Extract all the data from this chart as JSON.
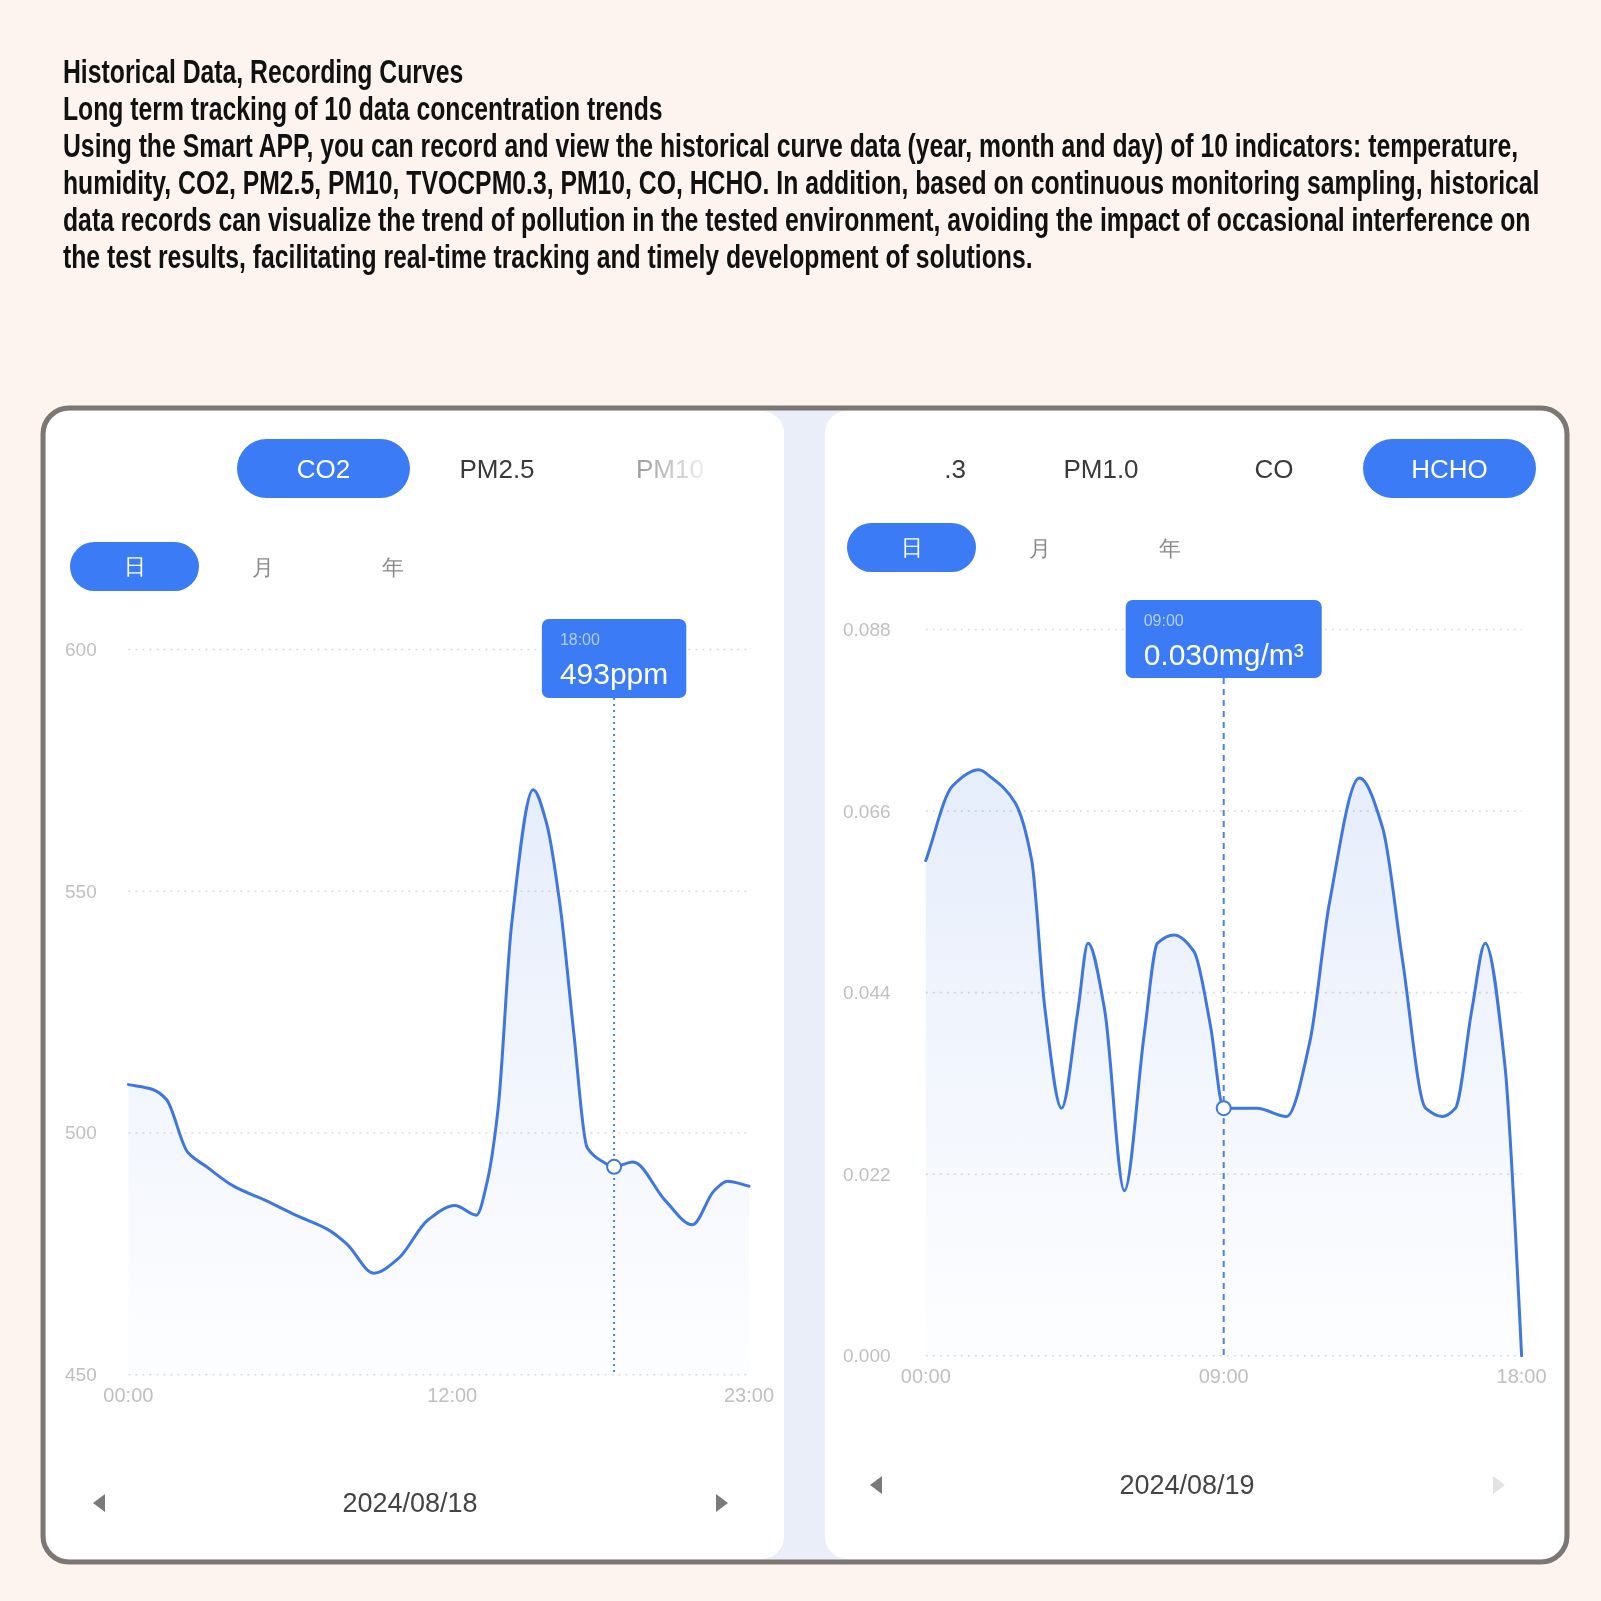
{
  "chart_data": [
    {
      "type": "area",
      "title": "Historical Data, Recording Curves",
      "subtitle": "Long term tracking of 10 data concentration trends",
      "annotations": [
        "Using the Smart APP, you can record and view the historical curve data (year, month and day) of 10 indicators: temperature, humidity, CO2, PM2.5, PM10, TVOCPM0.3, PM10, CO, HCHO. In addition, based on continuous monitoring sampling, historical data records can visualize the trend of pollution in the tested environment, avoiding the impact of occasional interference on the test results, facilitating real-time tracking and timely development of solutions.",
        "CO2",
        "PM2.5",
        "PM10",
        "日",
        "月",
        "年",
        "18:00",
        "493ppm",
        "2024/08/18"
      ],
      "x": [
        0,
        0.9,
        1.4,
        2.2,
        2.9,
        3.9,
        5.1,
        6.2,
        7.4,
        8.1,
        9.1,
        10.0,
        11.1,
        12.1,
        12.9,
        13.3,
        13.7,
        14.2,
        15.0,
        15.5,
        16.0,
        16.5,
        17.0,
        17.6,
        18,
        18.7,
        19.9,
        20.9,
        21.7,
        22.2,
        23
      ],
      "values": [
        510,
        509,
        507,
        496,
        493,
        489,
        486,
        483,
        480,
        477,
        471,
        474,
        482,
        485,
        483,
        490,
        505,
        543,
        571,
        564,
        547,
        521,
        497,
        494,
        493,
        494,
        486,
        481,
        488,
        490,
        489
      ],
      "color": "#3e76e2",
      "xlim": [
        0,
        23
      ],
      "xticks": [
        {
          "value": 0,
          "label": "00:00"
        },
        {
          "value": 12,
          "label": "12:00"
        },
        {
          "value": 23,
          "label": "23:00"
        }
      ],
      "ylim": [
        450,
        600
      ],
      "yticks": [
        450,
        500,
        550,
        600
      ],
      "grid": "y",
      "ref_lines": [
        {
          "axis": "x",
          "value": 18,
          "line_style": "dotted",
          "color": "#4a83ec"
        }
      ]
    },
    {
      "type": "area",
      "annotations": [
        ".3",
        "PM1.0",
        "CO",
        "HCHO",
        "日",
        "月",
        "年",
        "09:00",
        "0.030mg/m³",
        "2024/08/19"
      ],
      "x": [
        0,
        0.8,
        1.6,
        2.0,
        2.7,
        3.2,
        3.6,
        4.1,
        4.6,
        4.9,
        5.4,
        6.0,
        6.6,
        7.0,
        7.5,
        8.1,
        8.6,
        9,
        10,
        10.9,
        11.6,
        12.2,
        13.1,
        13.8,
        14.4,
        15.1,
        15.6,
        16.0,
        16.5,
        16.9,
        17.5,
        17.8,
        18
      ],
      "values": [
        0.06,
        0.069,
        0.071,
        0.07,
        0.067,
        0.06,
        0.042,
        0.03,
        0.042,
        0.05,
        0.042,
        0.02,
        0.039,
        0.05,
        0.051,
        0.049,
        0.04,
        0.03,
        0.03,
        0.029,
        0.038,
        0.055,
        0.07,
        0.064,
        0.048,
        0.03,
        0.029,
        0.03,
        0.042,
        0.05,
        0.035,
        0.016,
        0.0
      ],
      "color": "#3e76e2",
      "xlim": [
        0,
        18
      ],
      "xticks": [
        {
          "value": 0,
          "label": "00:00"
        },
        {
          "value": 9,
          "label": "09:00"
        },
        {
          "value": 18,
          "label": "18:00"
        }
      ],
      "ylim": [
        0,
        0.088
      ],
      "yticks": [
        {
          "value": 0,
          "label": "0.000"
        },
        0.022,
        0.044,
        0.066,
        0.088
      ],
      "grid": "y",
      "ref_lines": [
        {
          "axis": "x",
          "value": 9,
          "line_style": "dashed",
          "color": "#4a83ec"
        }
      ]
    }
  ]
}
